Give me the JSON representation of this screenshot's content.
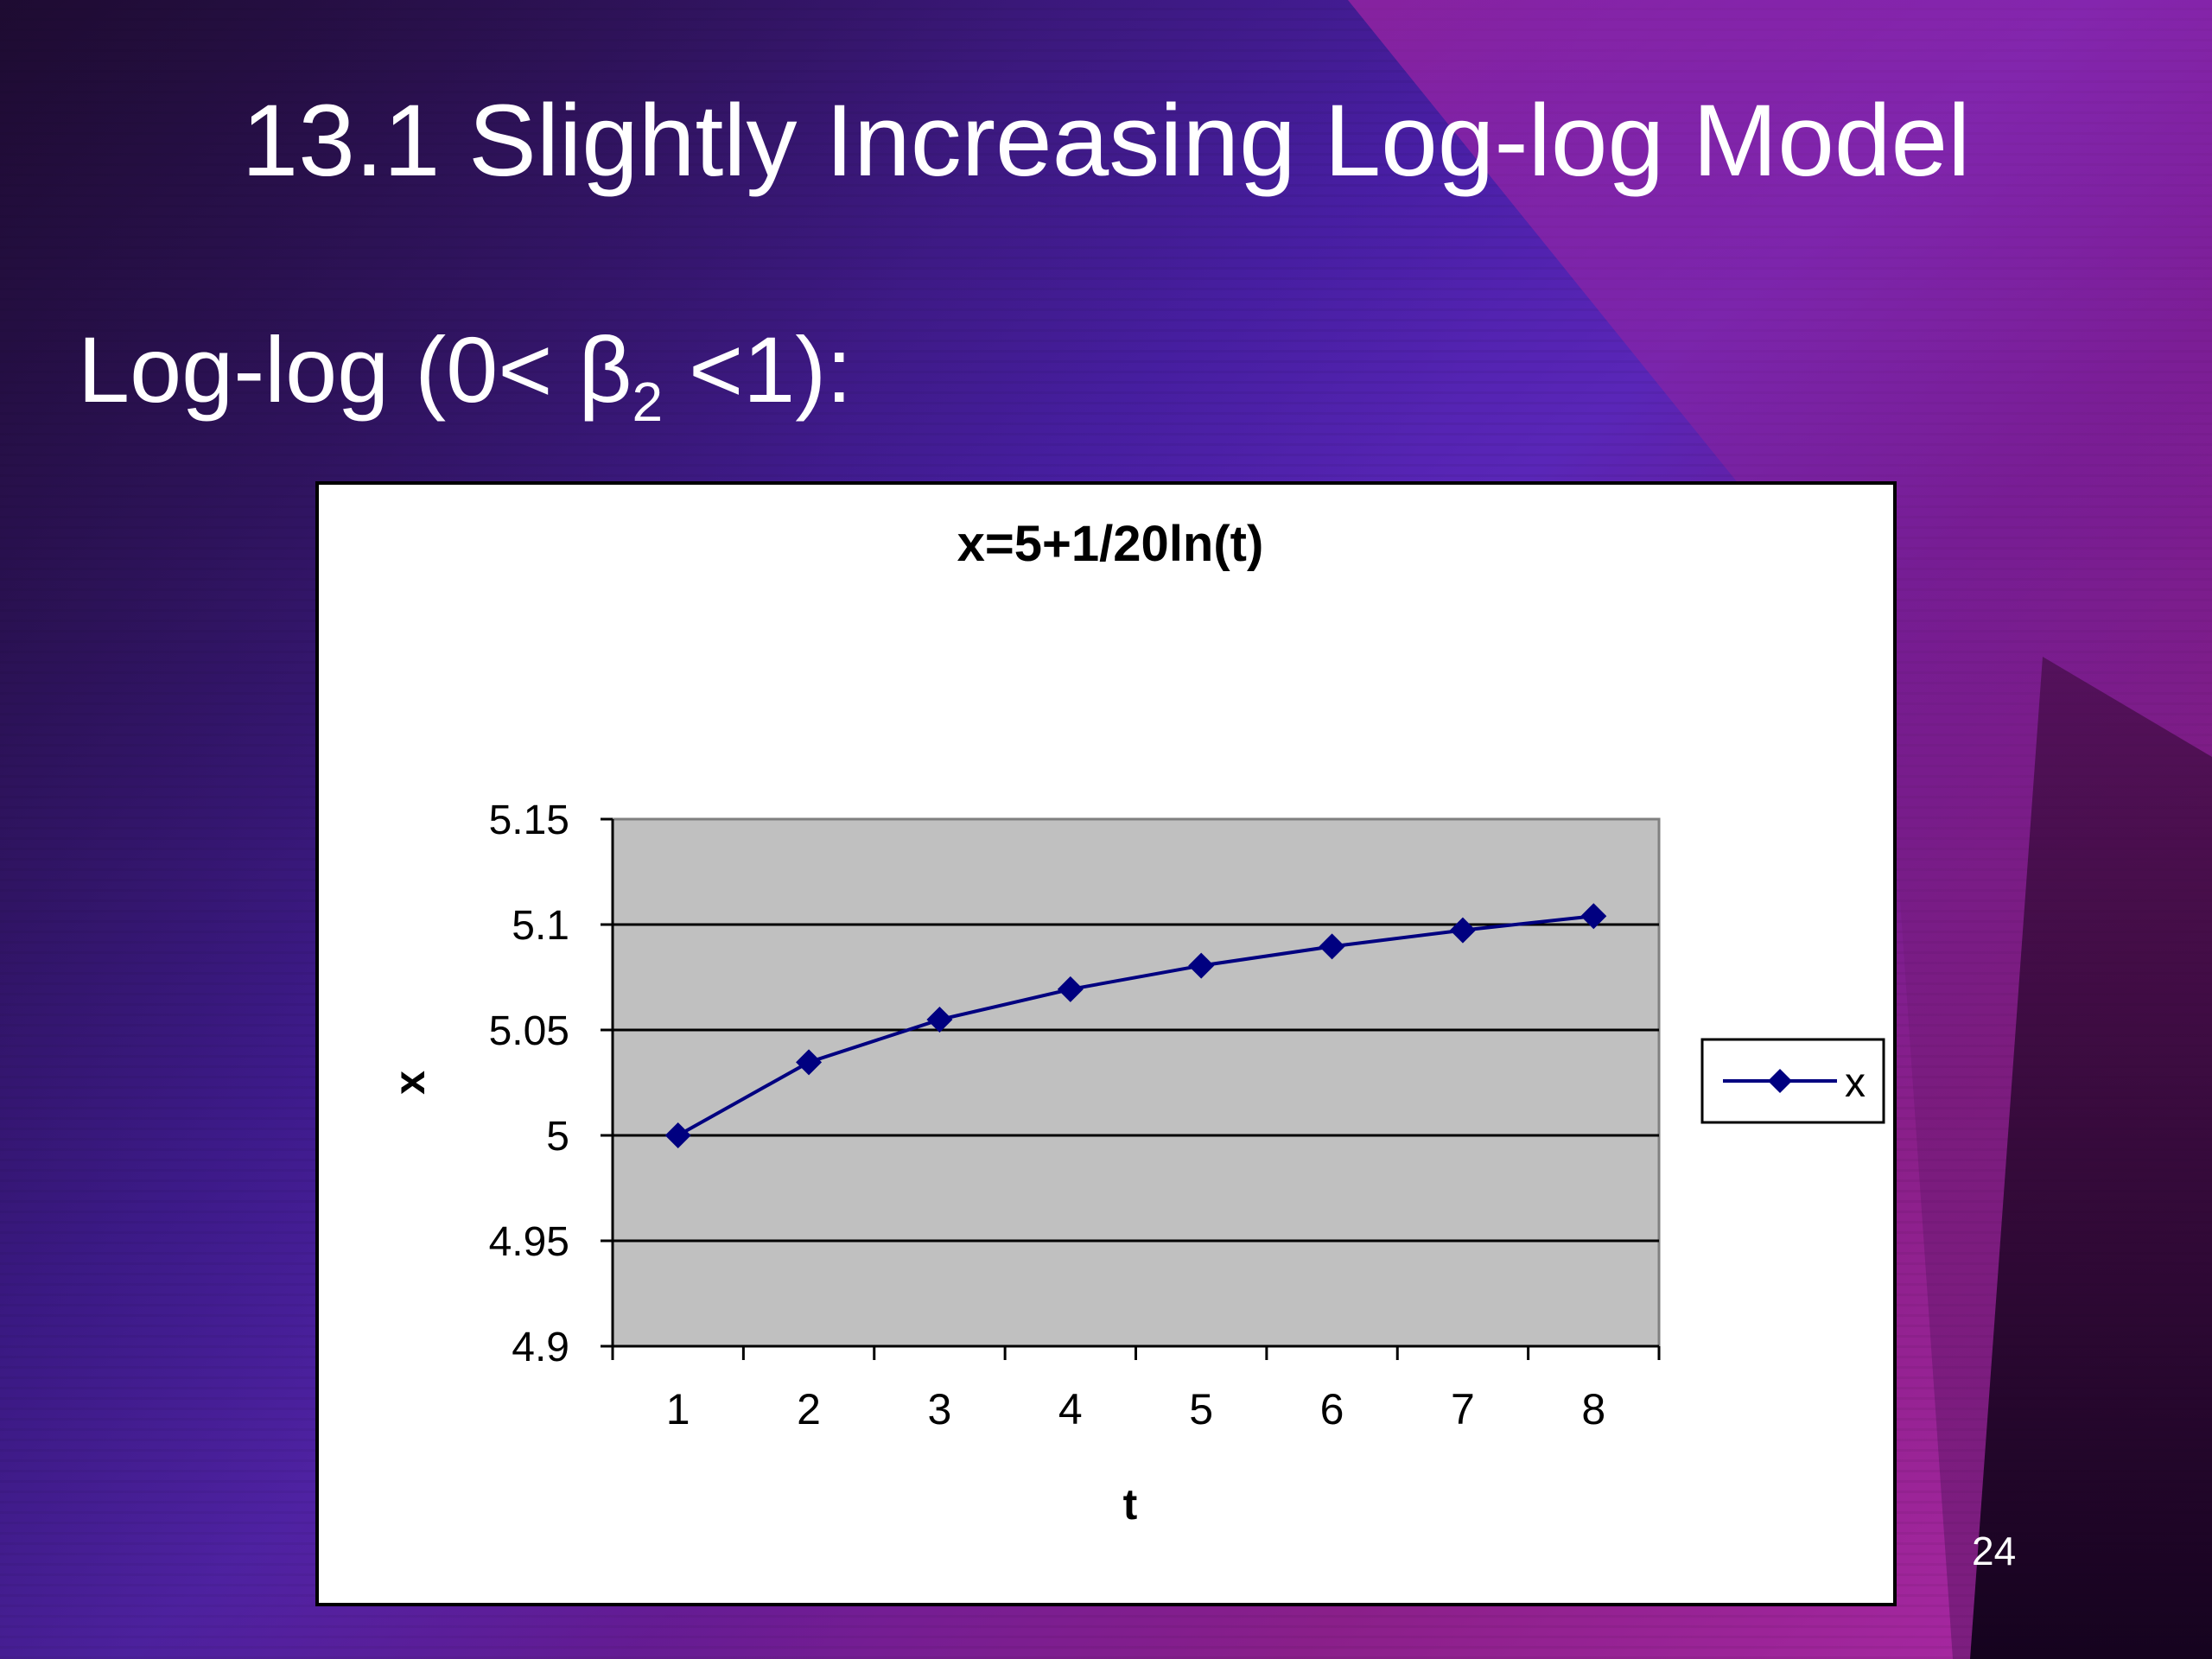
{
  "slide": {
    "title": "13.1 Slightly Increasing Log-log Model",
    "subtitle_prefix": "Log-log (0< β",
    "subtitle_sub": "2",
    "subtitle_suffix": " <1):",
    "page_number": "24"
  },
  "colors": {
    "series": "#000080",
    "plot_background": "#c0c0c0",
    "title_text": "#ffffff"
  },
  "chart_data": {
    "type": "line",
    "title": "x=5+1/20ln(t)",
    "xlabel": "t",
    "ylabel": "x",
    "categories": [
      "1",
      "2",
      "3",
      "4",
      "5",
      "6",
      "7",
      "8"
    ],
    "series": [
      {
        "name": "x",
        "values": [
          5.0,
          5.0347,
          5.0549,
          5.0693,
          5.0805,
          5.0896,
          5.0973,
          5.104
        ],
        "marker": "diamond"
      }
    ],
    "ylim": [
      4.9,
      5.15
    ],
    "yticks": [
      4.9,
      4.95,
      5.0,
      5.05,
      5.1,
      5.15
    ],
    "ytick_labels": [
      "4.9",
      "4.95",
      "5",
      "5.05",
      "5.1",
      "5.15"
    ],
    "grid": "horizontal",
    "legend": "right"
  }
}
